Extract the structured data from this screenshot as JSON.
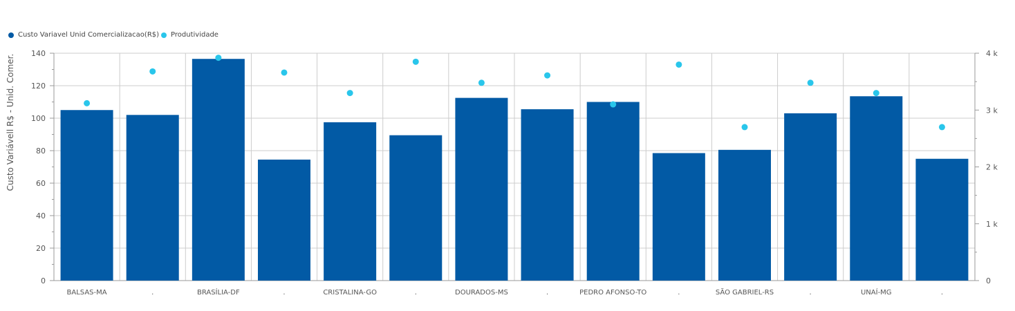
{
  "colors": {
    "bars": "#025aa5",
    "points": "#29c6eb",
    "grid": "#cccccc",
    "axis": "#999999",
    "text": "#555555"
  },
  "legend": {
    "cost_label": "Custo Variavel Unid Comercializacao(R$)",
    "prod_label": "Produtividade"
  },
  "axis": {
    "ylabel": "Custo Variávell R$ - Unid. Comer."
  },
  "chart_data": {
    "type": "bar",
    "categories": [
      "BALSAS-MA",
      ".",
      "BRASÍLIA-DF",
      ".",
      "CRISTALINA-GO",
      ".",
      "DOURADOS-MS",
      ".",
      "PEDRO AFONSO-TO",
      ".",
      "SÃO GABRIEL-RS",
      ".",
      "UNAÍ-MG",
      "."
    ],
    "series": [
      {
        "name": "Custo Variavel Unid Comercializacao(R$)",
        "type": "bar",
        "axis": "left",
        "values": [
          105,
          102,
          136.5,
          74.5,
          97.5,
          89.5,
          112.5,
          105.5,
          110,
          78.5,
          80.5,
          103,
          113.5,
          75
        ]
      },
      {
        "name": "Produtividade",
        "type": "scatter",
        "axis": "right",
        "values": [
          3120,
          3680,
          3920,
          3660,
          3300,
          3850,
          3480,
          3610,
          3100,
          3800,
          2700,
          3480,
          3300,
          2700
        ]
      }
    ],
    "ylabel": "Custo Variávell R$ - Unid. Comer.",
    "ylim": [
      0,
      140
    ],
    "yticks": [
      0,
      20,
      40,
      60,
      80,
      100,
      120,
      140
    ],
    "y2lim": [
      0,
      4000
    ],
    "y2ticks": [
      0,
      1000,
      2000,
      3000,
      4000
    ],
    "y2ticklabels": [
      "0",
      "1 k",
      "2 k",
      "3 k",
      "4 k"
    ],
    "grid": true,
    "legend_position": "top-left"
  }
}
